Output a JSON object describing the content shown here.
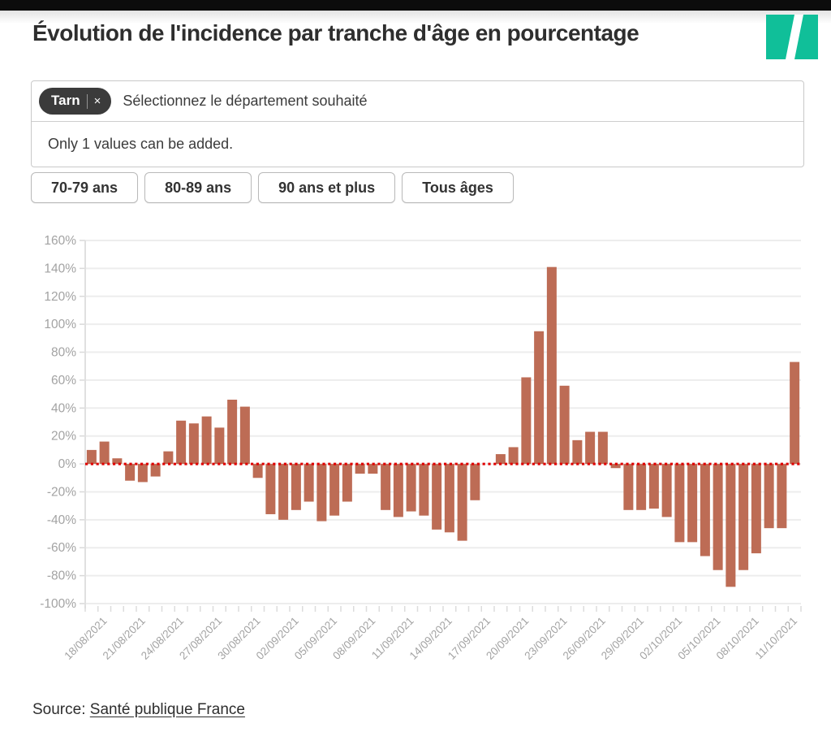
{
  "page": {
    "background": "#ffffff",
    "top_bar_color": "#0c0c0c"
  },
  "header": {
    "title": "Évolution de l'incidence par tranche d'âge en pourcentage",
    "logo": {
      "name": "huffpost-slash-logo",
      "color": "#10bf99"
    }
  },
  "filter": {
    "tag": "Tarn",
    "tag_remove": "×",
    "placeholder": "Sélectionnez le département souhaité",
    "note": "Only 1 values can be added."
  },
  "age_buttons": [
    {
      "label": "70-79 ans"
    },
    {
      "label": "80-89 ans"
    },
    {
      "label": "90 ans et plus"
    },
    {
      "label": "Tous âges"
    }
  ],
  "source": {
    "prefix": "Source: ",
    "link_text": "Santé publique France"
  },
  "chart_data": {
    "type": "bar",
    "title": "",
    "xlabel": "",
    "ylabel": "",
    "ylim": [
      -100,
      160
    ],
    "ytick_step": 20,
    "ytick_suffix": "%",
    "grid": true,
    "legend": "none",
    "bar_color": "#bd6c55",
    "zero_line": {
      "style": "dotted",
      "color": "#e00000",
      "value": 0
    },
    "x": [
      "17/08/2021",
      "18/08/2021",
      "19/08/2021",
      "20/08/2021",
      "21/08/2021",
      "22/08/2021",
      "23/08/2021",
      "24/08/2021",
      "25/08/2021",
      "26/08/2021",
      "27/08/2021",
      "28/08/2021",
      "29/08/2021",
      "30/08/2021",
      "31/08/2021",
      "01/09/2021",
      "02/09/2021",
      "03/09/2021",
      "04/09/2021",
      "05/09/2021",
      "06/09/2021",
      "07/09/2021",
      "08/09/2021",
      "09/09/2021",
      "10/09/2021",
      "11/09/2021",
      "12/09/2021",
      "13/09/2021",
      "14/09/2021",
      "15/09/2021",
      "16/09/2021",
      "17/09/2021",
      "18/09/2021",
      "19/09/2021",
      "20/09/2021",
      "21/09/2021",
      "22/09/2021",
      "23/09/2021",
      "24/09/2021",
      "25/09/2021",
      "26/09/2021",
      "27/09/2021",
      "28/09/2021",
      "29/09/2021",
      "30/09/2021",
      "01/10/2021",
      "02/10/2021",
      "03/10/2021",
      "04/10/2021",
      "05/10/2021",
      "06/10/2021",
      "07/10/2021",
      "08/10/2021",
      "09/10/2021",
      "10/10/2021",
      "11/10/2021"
    ],
    "values": [
      10,
      16,
      4,
      -12,
      -13,
      -9,
      9,
      31,
      29,
      34,
      26,
      46,
      41,
      -10,
      -36,
      -40,
      -33,
      -27,
      -41,
      -37,
      -27,
      -7,
      -7,
      -33,
      -38,
      -34,
      -37,
      -47,
      -49,
      -55,
      -26,
      0,
      7,
      12,
      62,
      95,
      141,
      56,
      17,
      23,
      23,
      -3,
      -33,
      -33,
      -32,
      -38,
      -56,
      -56,
      -66,
      -76,
      -88,
      -76,
      -64,
      -46,
      -46,
      73
    ],
    "xtick_labels": [
      "18/08/2021",
      "21/08/2021",
      "24/08/2021",
      "27/08/2021",
      "30/08/2021",
      "02/09/2021",
      "05/09/2021",
      "08/09/2021",
      "11/09/2021",
      "14/09/2021",
      "17/09/2021",
      "20/09/2021",
      "23/09/2021",
      "26/09/2021",
      "29/09/2021",
      "02/10/2021",
      "05/10/2021",
      "08/10/2021",
      "11/10/2021"
    ],
    "xtick_rotation": -45,
    "axis_text_color": "#a3a3a3",
    "grid_color": "#ededed"
  }
}
